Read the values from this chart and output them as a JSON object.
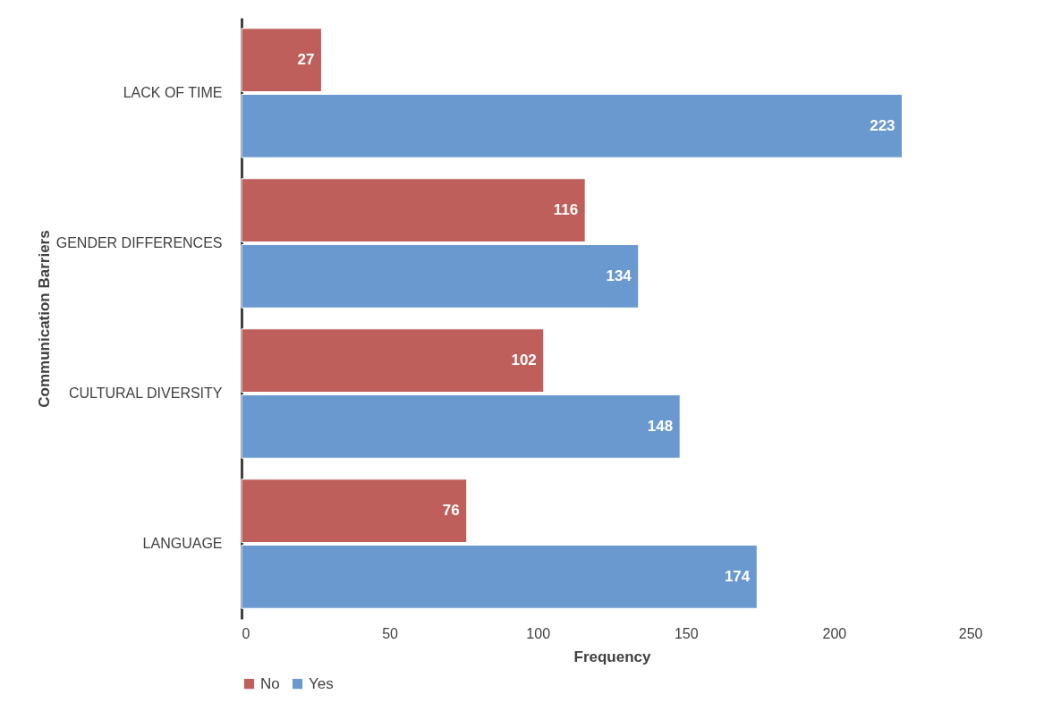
{
  "chart_data": {
    "type": "bar",
    "orientation": "horizontal",
    "xlabel": "Frequency",
    "ylabel": "Communication Barriers",
    "categories": [
      "LACK OF TIME",
      "GENDER DIFFERENCES",
      "CULTURAL DIVERSITY",
      "LANGUAGE"
    ],
    "series": [
      {
        "name": "No",
        "color": "#bf5f5c",
        "values": [
          27,
          116,
          102,
          76
        ]
      },
      {
        "name": "Yes",
        "color": "#6a99d0",
        "values": [
          223,
          134,
          148,
          174
        ]
      }
    ],
    "xlim": [
      0,
      250
    ],
    "xticks": [
      0,
      50,
      100,
      150,
      200,
      250
    ],
    "data_labels": true,
    "legend": "bottom"
  }
}
